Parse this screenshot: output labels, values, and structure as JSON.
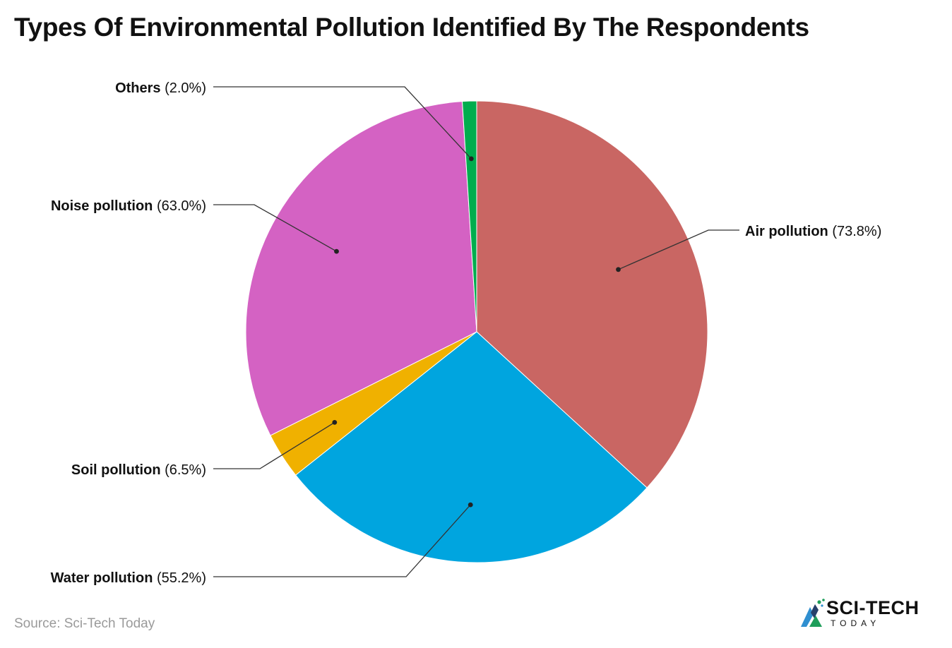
{
  "title": "Types Of Environmental Pollution Identified By The Respondents",
  "source": "Source: Sci-Tech Today",
  "logo": {
    "brand": "SCI-TECH",
    "sub": "TODAY",
    "icon": "sci-tech-logo-icon"
  },
  "chart_data": {
    "type": "pie",
    "slices": [
      {
        "name": "Air pollution",
        "value": 73.8,
        "label": "(73.8%)",
        "color": "#C96663"
      },
      {
        "name": "Water pollution",
        "value": 55.2,
        "label": "(55.2%)",
        "color": "#00A5DF"
      },
      {
        "name": "Soil pollution",
        "value": 6.5,
        "label": "(6.5%)",
        "color": "#F0B100"
      },
      {
        "name": "Noise pollution",
        "value": 63.0,
        "label": "(63.0%)",
        "color": "#D462C3"
      },
      {
        "name": "Others",
        "value": 2.0,
        "label": "(2.0%)",
        "color": "#00AD4E"
      }
    ]
  }
}
